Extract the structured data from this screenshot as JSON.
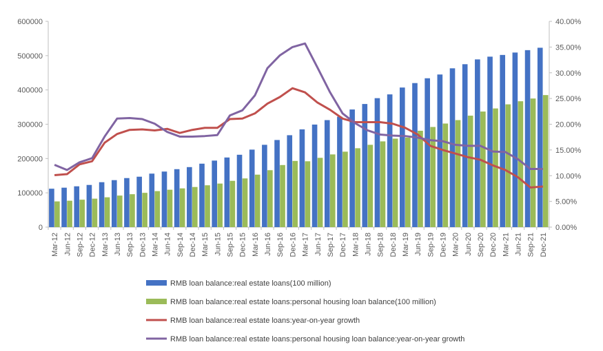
{
  "chart_data": {
    "type": "bar",
    "categories": [
      "Mar-12",
      "Jun-12",
      "Sep-12",
      "Dec-12",
      "Mar-13",
      "Jun-13",
      "Sep-13",
      "Dec-13",
      "Mar-14",
      "Jun-14",
      "Sep-14",
      "Dec-14",
      "Mar-15",
      "Jun-15",
      "Sep-15",
      "Dec-15",
      "Mar-16",
      "Jun-16",
      "Sep-16",
      "Dec-16",
      "Mar-17",
      "Jun-17",
      "Sep-17",
      "Dec-17",
      "Mar-18",
      "Jun-18",
      "Sep-18",
      "Dec-18",
      "Mar-19",
      "Jun-19",
      "Sep-19",
      "Dec-19",
      "Mar-20",
      "Jun-20",
      "Sep-20",
      "Dec-20",
      "Mar-21",
      "Jun-21",
      "Sep-21",
      "Dec-21"
    ],
    "y_left": {
      "min": 0,
      "max": 600000,
      "ticks": [
        "0",
        "100000",
        "200000",
        "300000",
        "400000",
        "500000",
        "600000"
      ]
    },
    "y_right": {
      "min": 0,
      "max": 0.4,
      "ticks": [
        "0.00%",
        "5.00%",
        "10.00%",
        "15.00%",
        "20.00%",
        "25.00%",
        "30.00%",
        "35.00%",
        "40.00%"
      ]
    },
    "series": [
      {
        "name": "RMB loan balance:real estate loans(100 million)",
        "kind": "bar",
        "axis": "left",
        "color": "#4472c4",
        "values": [
          112000,
          115000,
          119000,
          123000,
          131000,
          137000,
          143000,
          147000,
          156000,
          162000,
          169000,
          175000,
          185000,
          194000,
          203000,
          211000,
          226000,
          240000,
          254000,
          268000,
          285000,
          299000,
          312000,
          322000,
          343000,
          359000,
          376000,
          387000,
          407000,
          420000,
          434000,
          445000,
          463000,
          475000,
          489000,
          497000,
          502000,
          509000,
          516000,
          523000
        ]
      },
      {
        "name": "RMB loan balance:real estate loans:personal housing loan balance(100 million)",
        "kind": "bar",
        "axis": "left",
        "color": "#9bbb59",
        "values": [
          75000,
          77000,
          80000,
          83000,
          87000,
          92000,
          96000,
          100000,
          105000,
          109000,
          113000,
          117000,
          122000,
          127000,
          135000,
          142000,
          153000,
          166000,
          181000,
          193000,
          192000,
          202000,
          212000,
          220000,
          230000,
          240000,
          250000,
          258000,
          261000,
          281000,
          292000,
          302000,
          312000,
          325000,
          337000,
          346000,
          358000,
          367000,
          375000,
          385000
        ]
      },
      {
        "name": "RMB loan balance:real estate loans:year-on-year growth",
        "kind": "line",
        "axis": "right",
        "color": "#c0504d",
        "values": [
          0.101,
          0.103,
          0.122,
          0.128,
          0.164,
          0.181,
          0.189,
          0.19,
          0.188,
          0.191,
          0.183,
          0.189,
          0.193,
          0.193,
          0.21,
          0.211,
          0.221,
          0.24,
          0.253,
          0.27,
          0.262,
          0.242,
          0.228,
          0.211,
          0.204,
          0.204,
          0.204,
          0.201,
          0.193,
          0.18,
          0.158,
          0.15,
          0.143,
          0.136,
          0.131,
          0.12,
          0.111,
          0.097,
          0.077,
          0.079
        ]
      },
      {
        "name": "RMB loan balance:real estate loans:personal housing loan balance:year-on-year growth",
        "kind": "line",
        "axis": "right",
        "color": "#8064a2",
        "values": [
          0.121,
          0.111,
          0.126,
          0.134,
          0.176,
          0.211,
          0.212,
          0.21,
          0.201,
          0.185,
          0.176,
          0.176,
          0.177,
          0.179,
          0.217,
          0.227,
          0.256,
          0.309,
          0.334,
          0.35,
          0.357,
          0.31,
          0.262,
          0.221,
          0.202,
          0.188,
          0.18,
          0.178,
          0.177,
          0.174,
          0.169,
          0.167,
          0.16,
          0.158,
          0.158,
          0.147,
          0.146,
          0.132,
          0.113,
          0.113
        ]
      }
    ],
    "grid": false,
    "legend_position": "bottom"
  }
}
